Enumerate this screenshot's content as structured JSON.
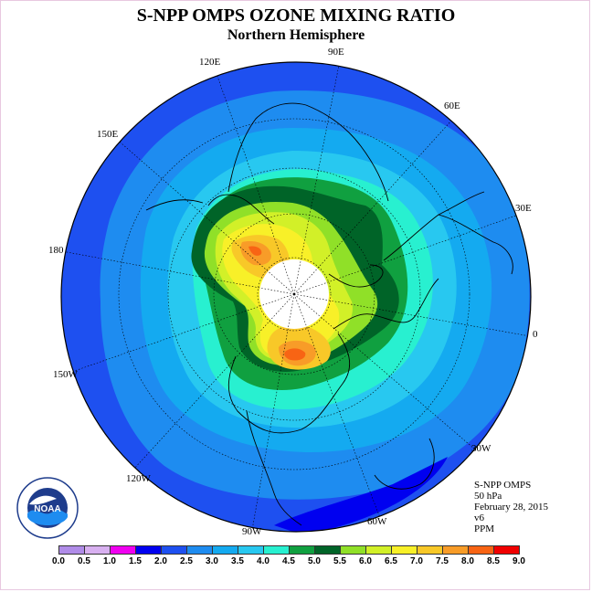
{
  "title": "S-NPP OMPS OZONE MIXING RATIO",
  "subtitle": "Northern Hemisphere",
  "longitude_labels": {
    "e120": "120E",
    "e90": "90E",
    "e60": "60E",
    "e150": "150E",
    "e30": "30E",
    "d180": "180",
    "d0": "0",
    "w150": "150W",
    "w30": "30W",
    "w120": "120W",
    "w60": "60W",
    "w90": "90W"
  },
  "info": {
    "instrument": "S-NPP OMPS",
    "level": "50 hPa",
    "date": "February 28, 2015",
    "version": "v6",
    "units": "PPM"
  },
  "colorbar": {
    "labels": [
      "0.0",
      "0.5",
      "1.0",
      "1.5",
      "2.0",
      "2.5",
      "3.0",
      "3.5",
      "4.0",
      "4.5",
      "5.0",
      "5.5",
      "6.0",
      "6.5",
      "7.0",
      "7.5",
      "8.0",
      "8.5",
      "9.0"
    ],
    "colors": [
      "#b08ce8",
      "#d8b0f0",
      "#f000f0",
      "#0000f0",
      "#1e50f0",
      "#1e8cf0",
      "#14aaf0",
      "#28c8f0",
      "#28f0d0",
      "#10a040",
      "#006428",
      "#90e028",
      "#d2f028",
      "#f8f028",
      "#f8c828",
      "#f89c28",
      "#f86414",
      "#f00000",
      "#966450"
    ]
  },
  "legend_logo_text": "NOAA"
}
